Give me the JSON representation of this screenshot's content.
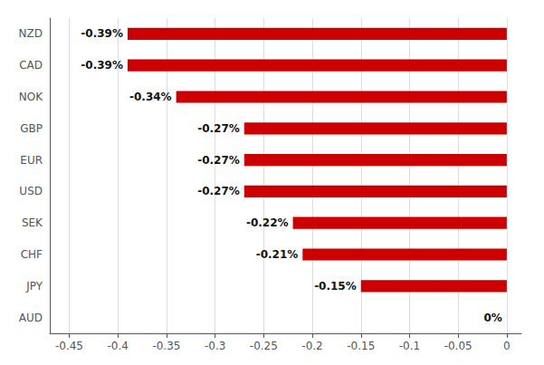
{
  "chart_data": {
    "type": "bar",
    "orientation": "horizontal",
    "categories": [
      "AUD",
      "JPY",
      "CHF",
      "SEK",
      "USD",
      "EUR",
      "GBP",
      "NOK",
      "CAD",
      "NZD"
    ],
    "values": [
      0.0,
      -0.15,
      -0.21,
      -0.22,
      -0.27,
      -0.27,
      -0.27,
      -0.34,
      -0.39,
      -0.39
    ],
    "value_labels": [
      "0%",
      "-0.15%",
      "-0.21%",
      "-0.22%",
      "-0.27%",
      "-0.27%",
      "-0.27%",
      "-0.34%",
      "-0.39%",
      "-0.39%"
    ],
    "color": "#cc0000",
    "xlim": [
      -0.47,
      0.015
    ],
    "xticks": [
      -0.45,
      -0.4,
      -0.35,
      -0.3,
      -0.25,
      -0.2,
      -0.15,
      -0.1,
      -0.05,
      0
    ],
    "grid": true,
    "data_labels": true
  }
}
